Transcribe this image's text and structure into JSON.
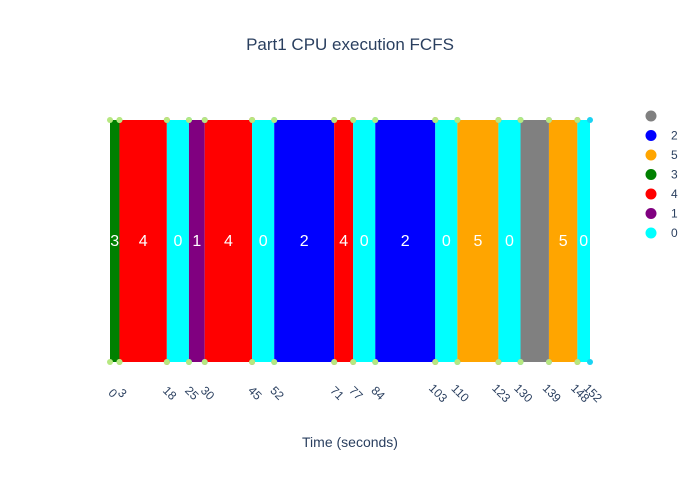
{
  "chart_data": {
    "type": "bar",
    "title": "Part1 CPU execution FCFS",
    "xlabel": "Time (seconds)",
    "ylabel": "",
    "xlim": [
      0,
      152
    ],
    "grid": false,
    "legend_position": "right",
    "tick_values": [
      0,
      3,
      18,
      25,
      30,
      45,
      52,
      71,
      77,
      84,
      103,
      110,
      123,
      130,
      139,
      148,
      152
    ],
    "colors": {
      "idle": "#808080",
      "2": "#0000ff",
      "5": "#ffa500",
      "3": "#008000",
      "4": "#ff0000",
      "1": "#800080",
      "0": "#00ffff"
    },
    "legend": [
      {
        "key": "idle",
        "label": ""
      },
      {
        "key": "2",
        "label": "2"
      },
      {
        "key": "5",
        "label": "5"
      },
      {
        "key": "3",
        "label": "3"
      },
      {
        "key": "4",
        "label": "4"
      },
      {
        "key": "1",
        "label": "1"
      },
      {
        "key": "0",
        "label": "0"
      }
    ],
    "segments": [
      {
        "process": "3",
        "label": "3",
        "start": 0,
        "end": 3
      },
      {
        "process": "4",
        "label": "4",
        "start": 3,
        "end": 18
      },
      {
        "process": "0",
        "label": "0",
        "start": 18,
        "end": 25
      },
      {
        "process": "1",
        "label": "1",
        "start": 25,
        "end": 30
      },
      {
        "process": "4",
        "label": "4",
        "start": 30,
        "end": 45
      },
      {
        "process": "0",
        "label": "0",
        "start": 45,
        "end": 52
      },
      {
        "process": "2",
        "label": "2",
        "start": 52,
        "end": 71
      },
      {
        "process": "4",
        "label": "4",
        "start": 71,
        "end": 77
      },
      {
        "process": "0",
        "label": "0",
        "start": 77,
        "end": 84
      },
      {
        "process": "2",
        "label": "2",
        "start": 84,
        "end": 103
      },
      {
        "process": "0",
        "label": "0",
        "start": 103,
        "end": 110
      },
      {
        "process": "5",
        "label": "5",
        "start": 110,
        "end": 123
      },
      {
        "process": "0",
        "label": "0",
        "start": 123,
        "end": 130
      },
      {
        "process": "idle",
        "label": "",
        "start": 130,
        "end": 139
      },
      {
        "process": "5",
        "label": "5",
        "start": 139,
        "end": 148
      },
      {
        "process": "0",
        "label": "0",
        "start": 148,
        "end": 152
      }
    ],
    "marker_colors": {
      "start": "#b6e880",
      "end": {
        "3": "#b6e880",
        "4": "#ef553b",
        "0": "#19d3f3",
        "1": "#ab63fa",
        "2": "#ef553b",
        "5": "#ef553b",
        "idle": "#ab63fa"
      }
    }
  }
}
